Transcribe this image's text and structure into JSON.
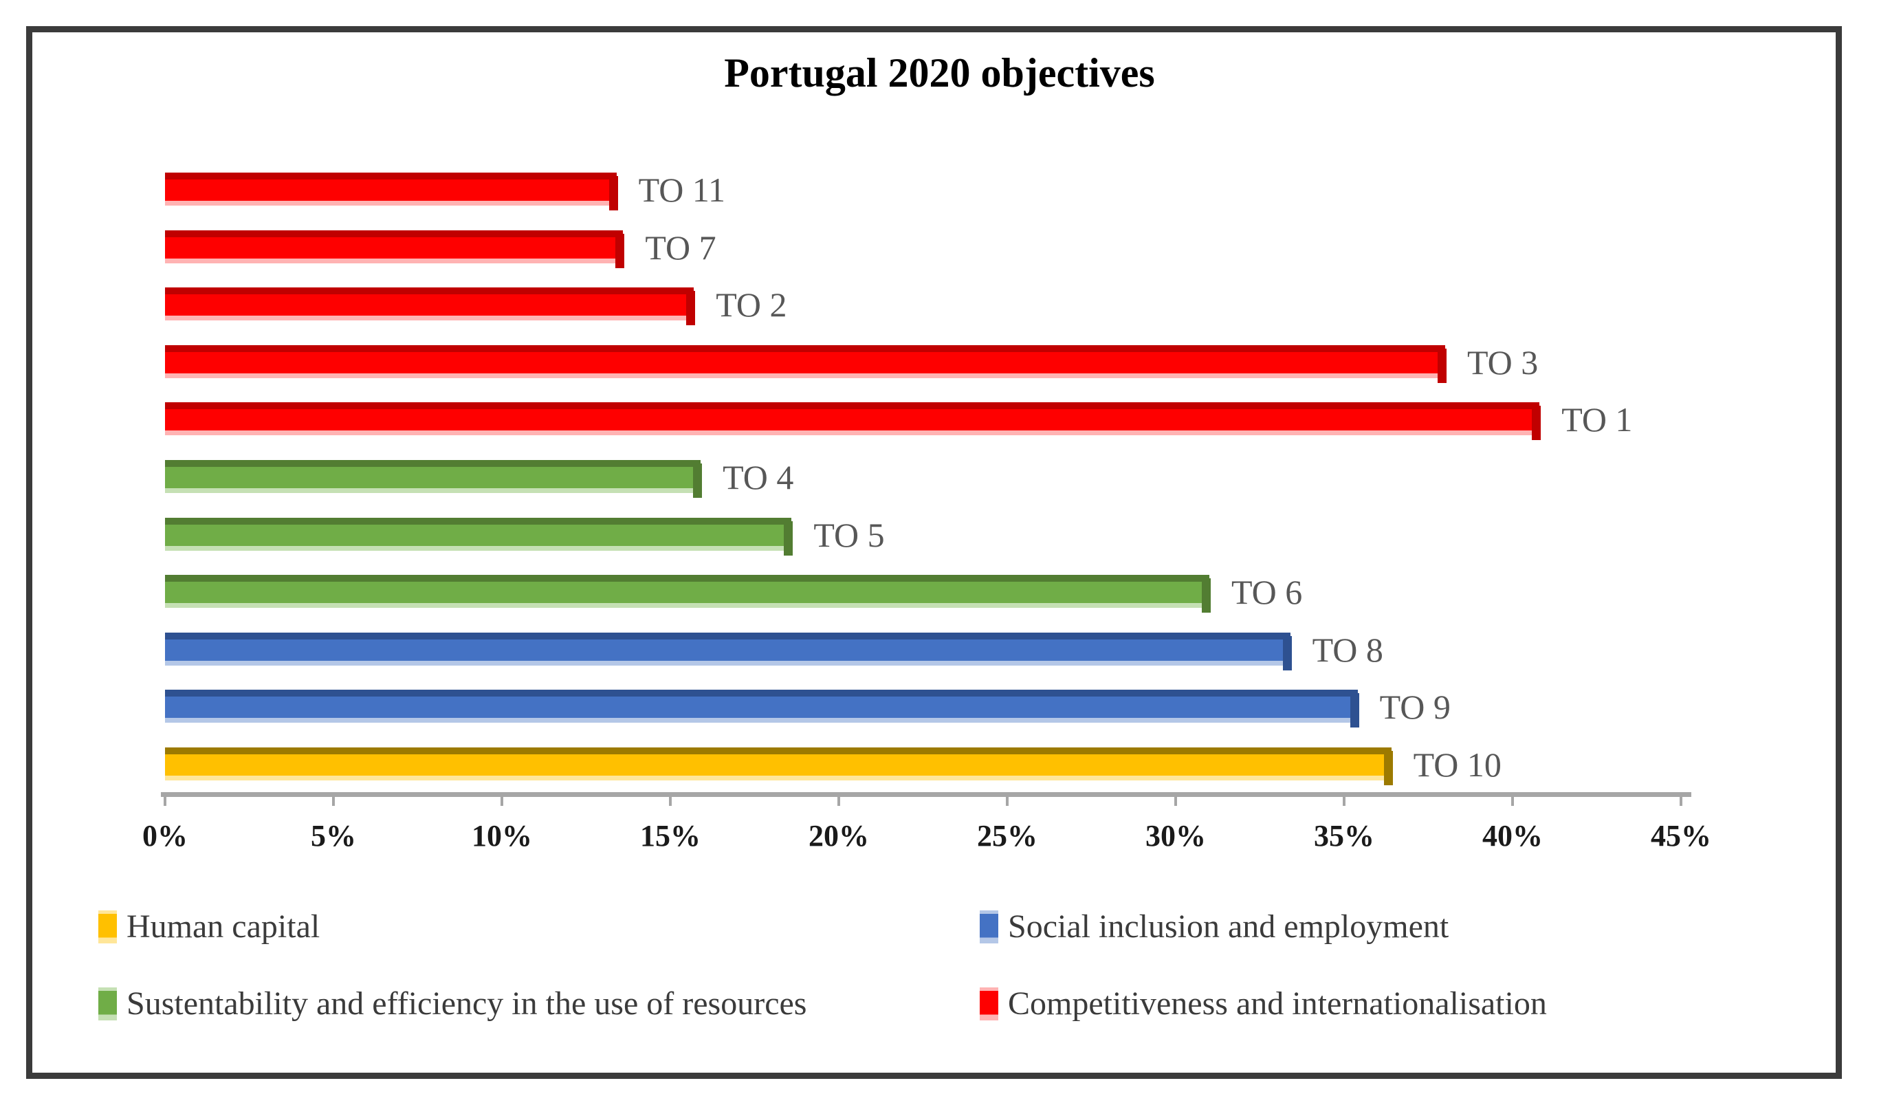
{
  "chart_data": {
    "type": "bar",
    "orientation": "horizontal",
    "title": "Portugal 2020 objectives",
    "xlabel": "",
    "ylabel": "",
    "unit": "%",
    "xlim": [
      0,
      45
    ],
    "x_tick_step": 5,
    "x_tick_labels": [
      "0%",
      "5%",
      "10%",
      "15%",
      "20%",
      "25%",
      "30%",
      "35%",
      "40%",
      "45%"
    ],
    "grid": false,
    "legend_position": "bottom",
    "bars": [
      {
        "label": "TO 11",
        "group": "competitiveness_and_internationalisation",
        "value": 13.4
      },
      {
        "label": "TO 7",
        "group": "competitiveness_and_internationalisation",
        "value": 13.6
      },
      {
        "label": "TO 2",
        "group": "competitiveness_and_internationalisation",
        "value": 15.7
      },
      {
        "label": "TO 3",
        "group": "competitiveness_and_internationalisation",
        "value": 38.0
      },
      {
        "label": "TO 1",
        "group": "competitiveness_and_internationalisation",
        "value": 40.8
      },
      {
        "label": "TO 4",
        "group": "sustentability_and_efficiency_in_the_use_of_resources",
        "value": 15.9
      },
      {
        "label": "TO 5",
        "group": "sustentability_and_efficiency_in_the_use_of_resources",
        "value": 18.6
      },
      {
        "label": "TO 6",
        "group": "sustentability_and_efficiency_in_the_use_of_resources",
        "value": 31.0
      },
      {
        "label": "TO 8",
        "group": "social_inclusion_and_employment",
        "value": 33.4
      },
      {
        "label": "TO 9",
        "group": "social_inclusion_and_employment",
        "value": 35.4
      },
      {
        "label": "TO 10",
        "group": "human_capital",
        "value": 36.4
      }
    ],
    "series_colors": {
      "human_capital": {
        "main": "#FFC000",
        "dark": "#9C7A00",
        "light": "#FFE699"
      },
      "social_inclusion_and_employment": {
        "main": "#4472C4",
        "dark": "#2E5191",
        "light": "#B4C7E7"
      },
      "sustentability_and_efficiency_in_the_use_of_resources": {
        "main": "#70AD47",
        "dark": "#527D32",
        "light": "#C5E0B4"
      },
      "competitiveness_and_internationalisation": {
        "main": "#FE0000",
        "dark": "#C00000",
        "light": "#FFB3B3"
      }
    },
    "legend": [
      {
        "label": "Human capital",
        "group": "human_capital"
      },
      {
        "label": "Social inclusion and employment",
        "group": "social_inclusion_and_employment"
      },
      {
        "label": "Sustentability and efficiency in the use of resources",
        "group": "sustentability_and_efficiency_in_the_use_of_resources"
      },
      {
        "label": "Competitiveness and internationalisation",
        "group": "competitiveness_and_internationalisation"
      }
    ]
  },
  "frame": {
    "border_color": "#3B3B3B",
    "background": "#FFFFFF",
    "axis_color": "#A6A6A6"
  }
}
